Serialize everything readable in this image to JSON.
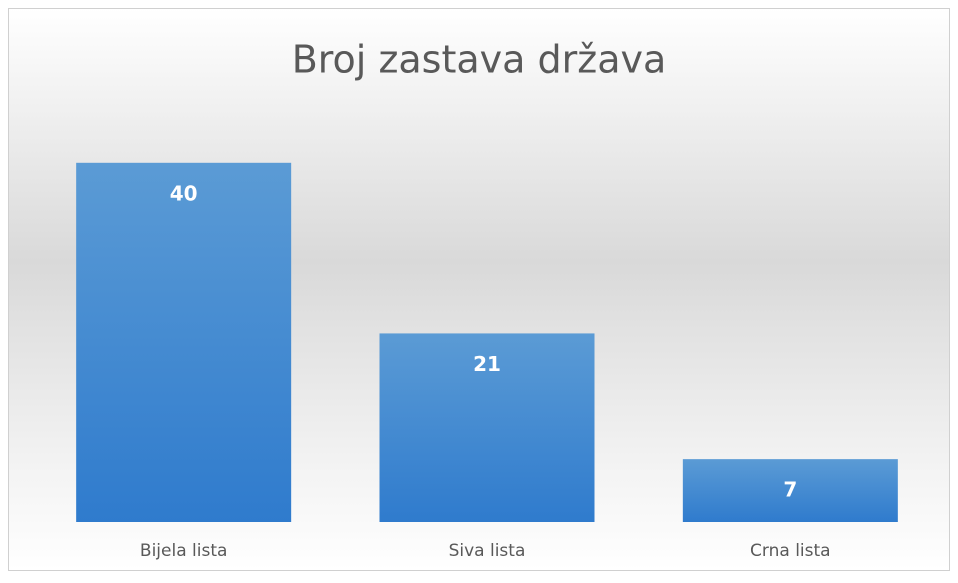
{
  "chart_data": {
    "type": "bar",
    "title": "Broj zastava država",
    "categories": [
      "Bijela lista",
      "Siva lista",
      "Crna lista"
    ],
    "values": [
      40,
      21,
      7
    ],
    "color": "#4a8fd6",
    "data_labels": true
  }
}
